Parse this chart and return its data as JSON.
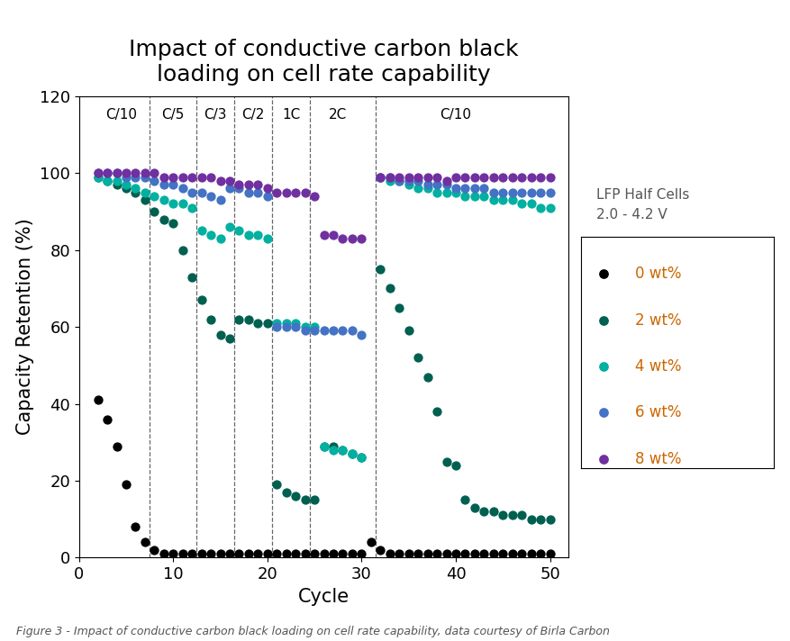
{
  "title": "Impact of conductive carbon black\nloading on cell rate capability",
  "xlabel": "Cycle",
  "ylabel": "Capacity Retention (%)",
  "xlim": [
    0,
    52
  ],
  "ylim": [
    0,
    120
  ],
  "yticks": [
    0,
    20,
    40,
    60,
    80,
    100,
    120
  ],
  "xticks": [
    0,
    10,
    20,
    30,
    40,
    50
  ],
  "caption": "Figure 3 - Impact of conductive carbon black loading on cell rate capability, data courtesy of Birla Carbon",
  "legend_title": "LFP Half Cells\n2.0 - 4.2 V",
  "legend_labels": [
    "0 wt%",
    "2 wt%",
    "4 wt%",
    "6 wt%",
    "8 wt%"
  ],
  "legend_colors": [
    "#000000",
    "#006050",
    "#00b0a0",
    "#4472c4",
    "#7030a0"
  ],
  "rate_labels": [
    "C/10",
    "C/5",
    "C/3",
    "C/2",
    "1C",
    "2C",
    "C/10"
  ],
  "rate_x": [
    4.5,
    10.0,
    14.5,
    18.5,
    22.5,
    27.5,
    40.0
  ],
  "vline_x": [
    7.5,
    12.5,
    16.5,
    20.5,
    24.5,
    31.5
  ],
  "series": {
    "0wt": {
      "color": "#000000",
      "x": [
        2,
        3,
        4,
        5,
        6,
        7,
        8,
        9,
        10,
        11,
        12,
        13,
        14,
        15,
        16,
        17,
        18,
        19,
        20,
        21,
        22,
        23,
        24,
        25,
        26,
        27,
        28,
        29,
        30,
        31,
        32,
        33,
        34,
        35,
        36,
        37,
        38,
        39,
        40,
        41,
        42,
        43,
        44,
        45,
        46,
        47,
        48,
        49,
        50
      ],
      "y": [
        41,
        36,
        29,
        19,
        8,
        4,
        2,
        1,
        1,
        1,
        1,
        1,
        1,
        1,
        1,
        1,
        1,
        1,
        1,
        1,
        1,
        1,
        1,
        1,
        1,
        1,
        1,
        1,
        1,
        4,
        2,
        1,
        1,
        1,
        1,
        1,
        1,
        1,
        1,
        1,
        1,
        1,
        1,
        1,
        1,
        1,
        1,
        1,
        1
      ]
    },
    "2wt": {
      "color": "#006050",
      "x": [
        2,
        3,
        4,
        5,
        6,
        7,
        8,
        9,
        10,
        11,
        12,
        13,
        14,
        15,
        16,
        17,
        18,
        19,
        20,
        21,
        22,
        23,
        24,
        25,
        26,
        27,
        28,
        29,
        30,
        32,
        33,
        34,
        35,
        36,
        37,
        38,
        39,
        40,
        41,
        42,
        43,
        44,
        45,
        46,
        47,
        48,
        49,
        50
      ],
      "y": [
        99,
        98,
        97,
        96,
        95,
        93,
        90,
        88,
        87,
        80,
        73,
        67,
        62,
        58,
        57,
        62,
        62,
        61,
        61,
        19,
        17,
        16,
        15,
        15,
        29,
        29,
        28,
        27,
        26,
        75,
        70,
        65,
        59,
        52,
        47,
        38,
        25,
        24,
        15,
        13,
        12,
        12,
        11,
        11,
        11,
        10,
        10,
        10
      ]
    },
    "4wt": {
      "color": "#00b0a0",
      "x": [
        2,
        3,
        4,
        5,
        6,
        7,
        8,
        9,
        10,
        11,
        12,
        13,
        14,
        15,
        16,
        17,
        18,
        19,
        20,
        21,
        22,
        23,
        24,
        25,
        26,
        27,
        28,
        29,
        30,
        32,
        33,
        34,
        35,
        36,
        37,
        38,
        39,
        40,
        41,
        42,
        43,
        44,
        45,
        46,
        47,
        48,
        49,
        50
      ],
      "y": [
        99,
        98,
        98,
        97,
        96,
        95,
        94,
        93,
        92,
        92,
        91,
        85,
        84,
        83,
        86,
        85,
        84,
        84,
        83,
        61,
        61,
        61,
        60,
        60,
        29,
        28,
        28,
        27,
        26,
        99,
        98,
        98,
        97,
        96,
        96,
        95,
        95,
        95,
        94,
        94,
        94,
        93,
        93,
        93,
        92,
        92,
        91,
        91
      ]
    },
    "6wt": {
      "color": "#4472c4",
      "x": [
        2,
        3,
        4,
        5,
        6,
        7,
        8,
        9,
        10,
        11,
        12,
        13,
        14,
        15,
        16,
        17,
        18,
        19,
        20,
        21,
        22,
        23,
        24,
        25,
        26,
        27,
        28,
        29,
        30,
        32,
        33,
        34,
        35,
        36,
        37,
        38,
        39,
        40,
        41,
        42,
        43,
        44,
        45,
        46,
        47,
        48,
        49,
        50
      ],
      "y": [
        100,
        100,
        100,
        99,
        99,
        99,
        98,
        97,
        97,
        96,
        95,
        95,
        94,
        93,
        96,
        96,
        95,
        95,
        94,
        60,
        60,
        60,
        59,
        59,
        59,
        59,
        59,
        59,
        58,
        99,
        99,
        98,
        98,
        98,
        97,
        97,
        97,
        96,
        96,
        96,
        96,
        95,
        95,
        95,
        95,
        95,
        95,
        95
      ]
    },
    "8wt": {
      "color": "#7030a0",
      "x": [
        2,
        3,
        4,
        5,
        6,
        7,
        8,
        9,
        10,
        11,
        12,
        13,
        14,
        15,
        16,
        17,
        18,
        19,
        20,
        21,
        22,
        23,
        24,
        25,
        26,
        27,
        28,
        29,
        30,
        32,
        33,
        34,
        35,
        36,
        37,
        38,
        39,
        40,
        41,
        42,
        43,
        44,
        45,
        46,
        47,
        48,
        49,
        50
      ],
      "y": [
        100,
        100,
        100,
        100,
        100,
        100,
        100,
        99,
        99,
        99,
        99,
        99,
        99,
        98,
        98,
        97,
        97,
        97,
        96,
        95,
        95,
        95,
        95,
        94,
        84,
        84,
        83,
        83,
        83,
        99,
        99,
        99,
        99,
        99,
        99,
        99,
        98,
        99,
        99,
        99,
        99,
        99,
        99,
        99,
        99,
        99,
        99,
        99
      ]
    }
  },
  "background_color": "#ffffff",
  "title_fontsize": 18,
  "axis_fontsize": 15,
  "tick_fontsize": 13,
  "caption_fontsize": 9,
  "marker_size": 55
}
